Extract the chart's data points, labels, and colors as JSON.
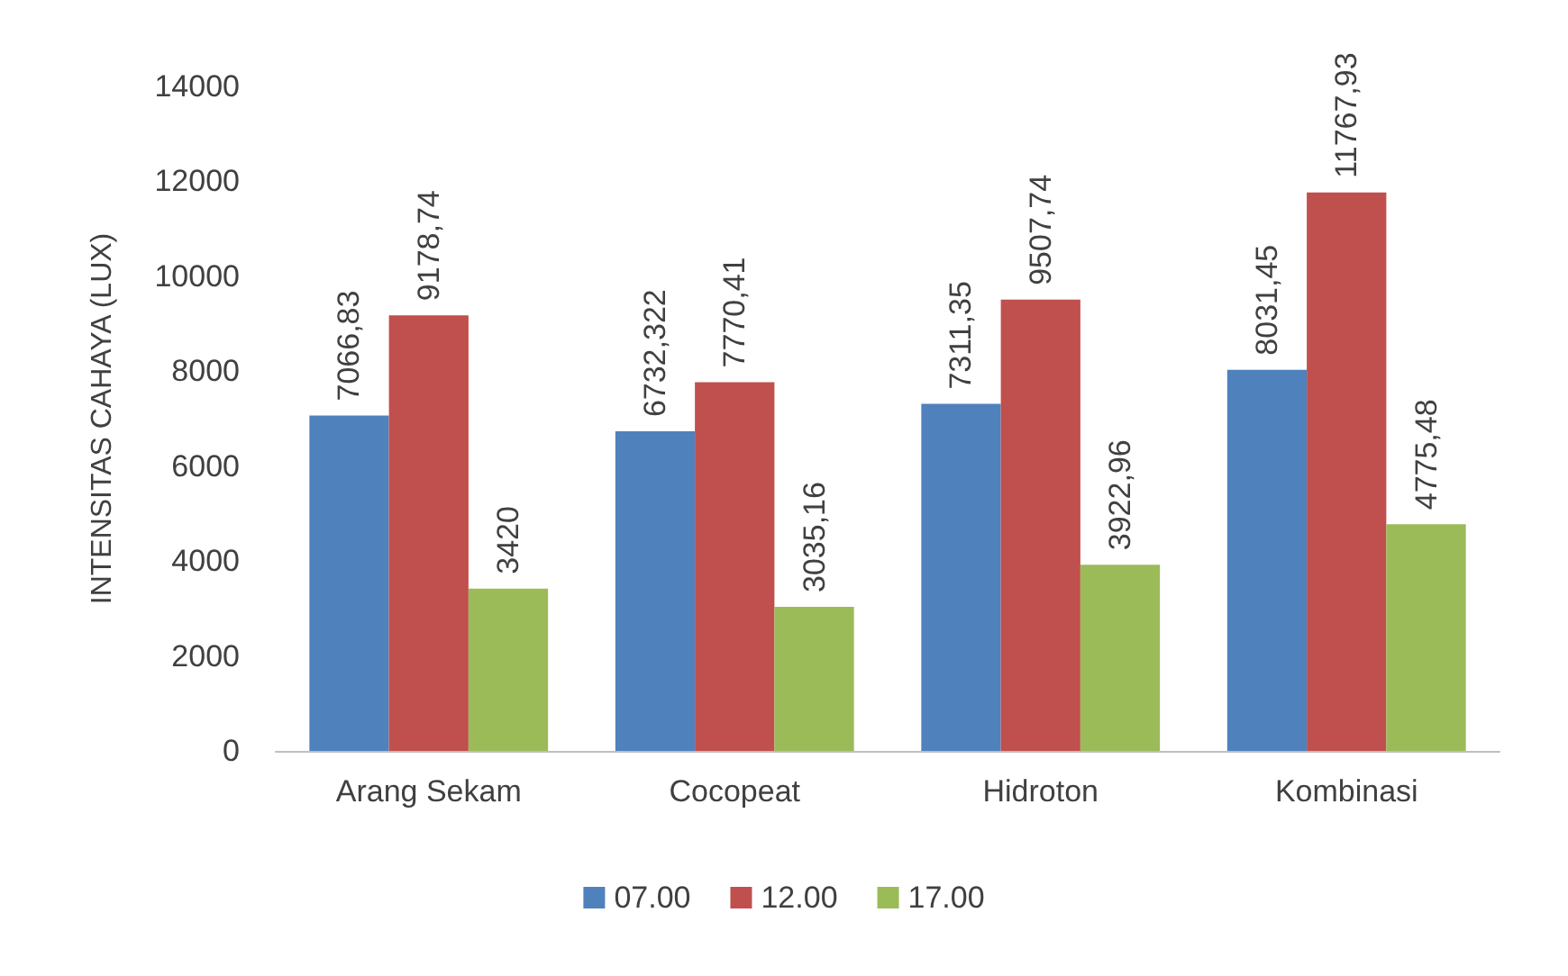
{
  "chart_data": {
    "type": "bar",
    "ylabel": "INTENSITAS CAHAYA (LUX)",
    "categories": [
      "Arang Sekam",
      "Cocopeat",
      "Hidroton",
      "Kombinasi"
    ],
    "series": [
      {
        "name": "07.00",
        "color": "#4f81bd",
        "values": [
          7066.83,
          6732.322,
          7311.35,
          8031.45
        ],
        "value_labels": [
          "7066,83",
          "6732,322",
          "7311,35",
          "8031,45"
        ]
      },
      {
        "name": "12.00",
        "color": "#c0504d",
        "values": [
          9178.74,
          7770.41,
          9507.74,
          11767.93
        ],
        "value_labels": [
          "9178,74",
          "7770,41",
          "9507,74",
          "11767,93"
        ]
      },
      {
        "name": "17.00",
        "color": "#9bbb59",
        "values": [
          3420,
          3035.16,
          3922.96,
          4775.48
        ],
        "value_labels": [
          "3420",
          "3035,16",
          "3922,96",
          "4775,48"
        ]
      }
    ],
    "ylim": [
      0,
      14000
    ],
    "yticks": [
      0,
      2000,
      4000,
      6000,
      8000,
      10000,
      12000,
      14000
    ],
    "grid": false,
    "legend": "bottom"
  }
}
